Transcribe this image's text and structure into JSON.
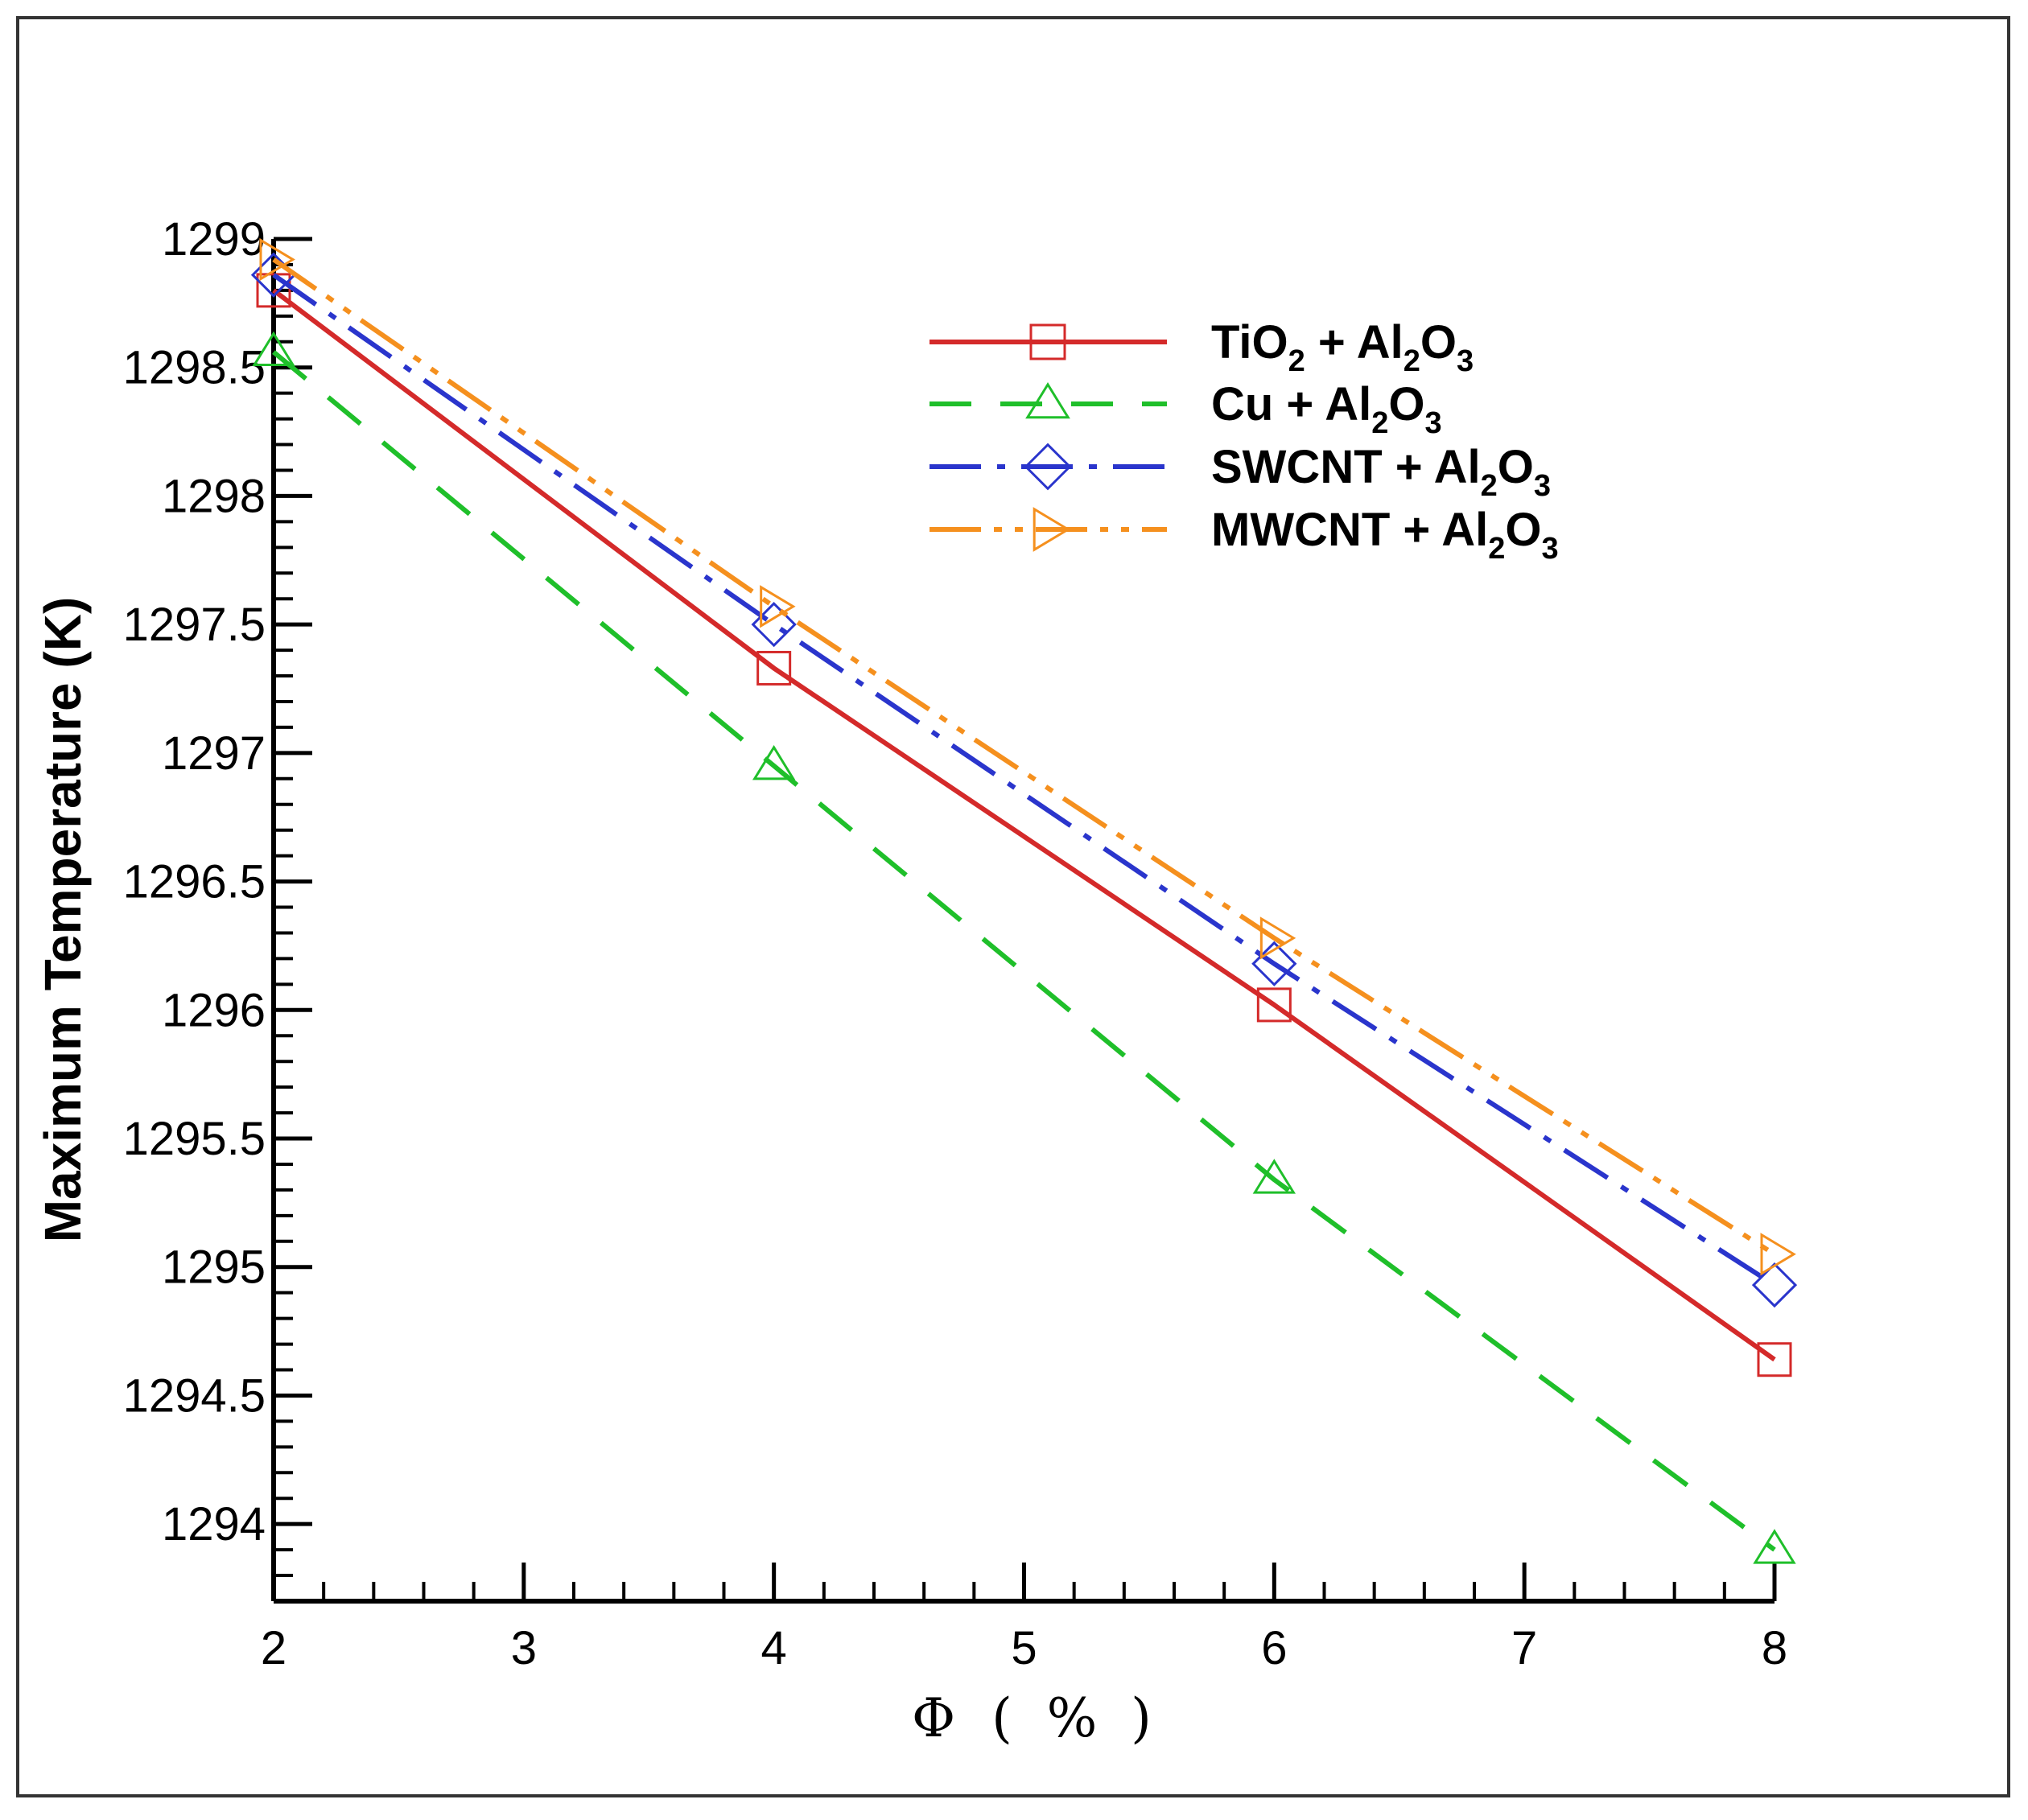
{
  "chart_data": {
    "type": "line",
    "title": "",
    "xlabel": "Φ ( % )",
    "xlabel_parts": [
      "Φ",
      "(",
      "%",
      ")"
    ],
    "ylabel": "Maximum Temperature (K)",
    "xlim": [
      2,
      8
    ],
    "ylim": [
      1293.7,
      1299
    ],
    "xticks": [
      2,
      3,
      4,
      5,
      6,
      7,
      8
    ],
    "xtick_labels": [
      "2",
      "3",
      "4",
      "5",
      "6",
      "7",
      "8"
    ],
    "yticks": [
      1294,
      1294.5,
      1295,
      1295.5,
      1296,
      1296.5,
      1297,
      1297.5,
      1298,
      1298.5,
      1299
    ],
    "ytick_labels": [
      "1294",
      "1294.5",
      "1295",
      "1295.5",
      "1296",
      "1296.5",
      "1297",
      "1297.5",
      "1298",
      "1298.5",
      "1299"
    ],
    "grid": false,
    "legend_position": "top-right",
    "x": [
      2,
      4,
      6,
      8
    ],
    "series": [
      {
        "name": "TiO2 + Al2O3",
        "label_parts": [
          [
            "TiO",
            ""
          ],
          [
            "2",
            "sub"
          ],
          [
            " + Al",
            ""
          ],
          [
            "2",
            "sub"
          ],
          [
            "O",
            ""
          ],
          [
            "3",
            "sub"
          ]
        ],
        "values": [
          1298.8,
          1297.33,
          1296.02,
          1294.64
        ],
        "color": "#d42a2a",
        "marker": "square",
        "dash": "solid"
      },
      {
        "name": "Cu + Al2O3",
        "label_parts": [
          [
            "Cu + Al",
            ""
          ],
          [
            "2",
            "sub"
          ],
          [
            "O",
            ""
          ],
          [
            "3",
            "sub"
          ]
        ],
        "values": [
          1298.56,
          1296.95,
          1295.34,
          1293.9
        ],
        "color": "#1fbf2a",
        "marker": "triangle",
        "dash": "dash"
      },
      {
        "name": "SWCNT + Al2O3",
        "label_parts": [
          [
            "SWCNT + Al",
            ""
          ],
          [
            "2",
            "sub"
          ],
          [
            "O",
            ""
          ],
          [
            "3",
            "sub"
          ]
        ],
        "values": [
          1298.86,
          1297.5,
          1296.18,
          1294.93
        ],
        "color": "#2a35cc",
        "marker": "diamond",
        "dash": "dashdot"
      },
      {
        "name": "MWCNT + Al2O3",
        "label_parts": [
          [
            "MWCNT + Al",
            ""
          ],
          [
            "2",
            "sub"
          ],
          [
            "O",
            ""
          ],
          [
            "3",
            "sub"
          ]
        ],
        "values": [
          1298.92,
          1297.57,
          1296.28,
          1295.05
        ],
        "color": "#f5901e",
        "marker": "triangle-right",
        "dash": "dashdotdot"
      }
    ]
  }
}
